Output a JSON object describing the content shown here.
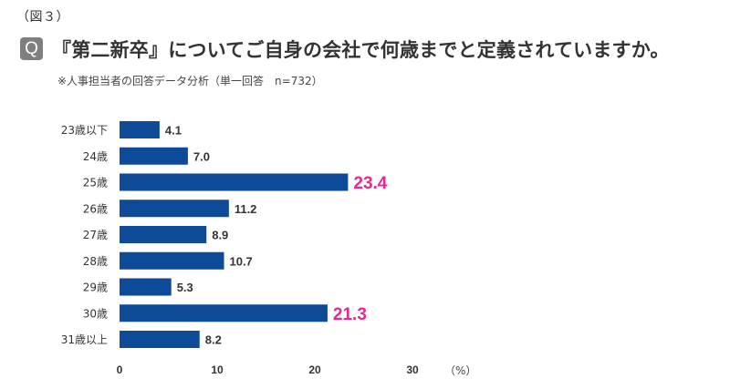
{
  "figure_label": "（図３）",
  "question_badge": "Q",
  "question": "『第二新卒』についてご自身の会社で何歳までと定義されていますか。",
  "note": "※人事担当者の回答データ分析（単一回答　n=732）",
  "colors": {
    "bar": "#0d4a97",
    "highlight": "#e22b8d",
    "label": "#333333"
  },
  "chart_data": {
    "type": "bar",
    "orientation": "horizontal",
    "categories": [
      "23歳以下",
      "24歳",
      "25歳",
      "26歳",
      "27歳",
      "28歳",
      "29歳",
      "30歳",
      "31歳以上"
    ],
    "values": [
      4.1,
      7.0,
      23.4,
      11.2,
      8.9,
      10.7,
      5.3,
      21.3,
      8.2
    ],
    "value_labels": [
      "4.1",
      "7.0",
      "23.4",
      "11.2",
      "8.9",
      "10.7",
      "5.3",
      "21.3",
      "8.2"
    ],
    "highlighted": [
      false,
      false,
      true,
      false,
      false,
      false,
      false,
      true,
      false
    ],
    "xlim": [
      0,
      30
    ],
    "xticks": [
      "0",
      "10",
      "20",
      "30"
    ],
    "unit": "（%）",
    "grid": false
  }
}
